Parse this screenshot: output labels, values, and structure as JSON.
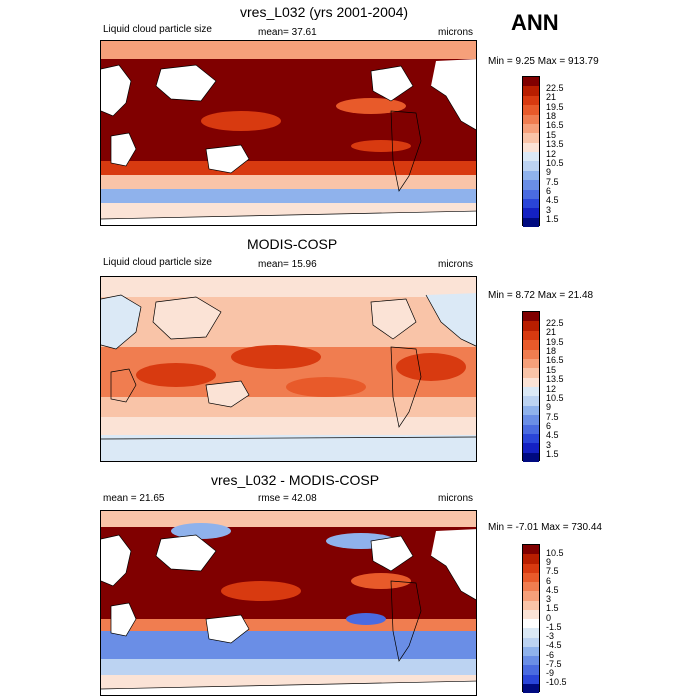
{
  "season": "ANN",
  "panels": [
    {
      "title": "vres_L032 (yrs 2001-2004)",
      "left_label": "Liquid cloud particle size",
      "center_label": "mean=  37.61",
      "right_label": "microns",
      "minmax": "Min =   9.25 Max = 913.79",
      "levels": [
        "22.5",
        "21",
        "19.5",
        "18",
        "16.5",
        "15",
        "13.5",
        "12",
        "10.5",
        "9",
        "7.5",
        "6",
        "4.5",
        "3",
        "1.5"
      ],
      "colors": [
        "#800000",
        "#b81e00",
        "#d83a10",
        "#e85a2a",
        "#f07d50",
        "#f6a07a",
        "#f9c4a8",
        "#fbe3d6",
        "#dbe9f6",
        "#bcd3f2",
        "#8fb2ec",
        "#6a8ee6",
        "#4a6be0",
        "#2a45d8",
        "#1421c2",
        "#000a80"
      ]
    },
    {
      "title": "MODIS-COSP",
      "left_label": "Liquid cloud particle size",
      "center_label": "mean=  15.96",
      "right_label": "microns",
      "minmax": "Min =   8.72 Max =  21.48",
      "levels": [
        "22.5",
        "21",
        "19.5",
        "18",
        "16.5",
        "15",
        "13.5",
        "12",
        "10.5",
        "9",
        "7.5",
        "6",
        "4.5",
        "3",
        "1.5"
      ],
      "colors": [
        "#800000",
        "#b81e00",
        "#d83a10",
        "#e85a2a",
        "#f07d50",
        "#f6a07a",
        "#f9c4a8",
        "#fbe3d6",
        "#dbe9f6",
        "#bcd3f2",
        "#8fb2ec",
        "#6a8ee6",
        "#4a6be0",
        "#2a45d8",
        "#1421c2",
        "#000a80"
      ]
    },
    {
      "title": "vres_L032 - MODIS-COSP",
      "left_label": "mean =  21.65",
      "center_label": "rmse =  42.08",
      "right_label": "microns",
      "minmax": "Min =  -7.01 Max = 730.44",
      "levels": [
        "10.5",
        "9",
        "7.5",
        "6",
        "4.5",
        "3",
        "1.5",
        "0",
        "-1.5",
        "-3",
        "-4.5",
        "-6",
        "-7.5",
        "-9",
        "-10.5"
      ],
      "colors": [
        "#800000",
        "#b81e00",
        "#d83a10",
        "#e85a2a",
        "#f07d50",
        "#f6a07a",
        "#f9c4a8",
        "#fbe3d6",
        "#ffffff",
        "#dbe9f6",
        "#bcd3f2",
        "#8fb2ec",
        "#6a8ee6",
        "#4a6be0",
        "#2a45d8",
        "#000a80"
      ]
    }
  ]
}
